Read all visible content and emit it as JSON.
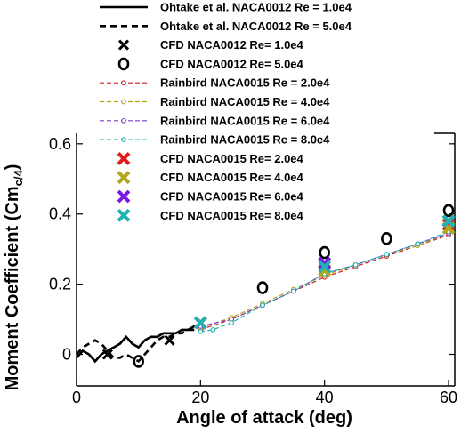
{
  "chart_data": {
    "type": "line",
    "title": "",
    "xlabel": "Angle of attack (deg)",
    "ylabel_main": "Moment Coefficient (Cm",
    "ylabel_sub": "c/4",
    "ylabel_close": ")",
    "xlim": [
      0,
      61
    ],
    "ylim": [
      -0.09,
      0.63
    ],
    "x_ticks": [
      0,
      20,
      40,
      60
    ],
    "x_tick_labels": [
      "0",
      "20",
      "40",
      "60"
    ],
    "y_ticks": [
      0,
      0.2,
      0.4,
      0.6
    ],
    "y_tick_labels": [
      "0",
      "0.2",
      "0.4",
      "0.6"
    ],
    "legend_position": "top-left",
    "series": [
      {
        "name": "Ohtake et al. NACA0012 Re = 1.0e4",
        "kind": "line",
        "color": "#000000",
        "dash": "solid",
        "x": [
          0,
          1,
          2,
          3,
          4,
          5,
          6,
          7,
          8,
          9,
          10,
          11,
          12,
          13,
          14,
          15,
          16,
          17,
          18,
          19,
          20
        ],
        "y": [
          -0.01,
          0.01,
          0.0,
          -0.02,
          0.0,
          0.01,
          0.02,
          0.03,
          0.05,
          0.03,
          0.02,
          0.04,
          0.05,
          0.05,
          0.06,
          0.06,
          0.06,
          0.07,
          0.07,
          0.08,
          0.08
        ]
      },
      {
        "name": "Ohtake et al. NACA0012 Re = 5.0e4",
        "kind": "line",
        "color": "#000000",
        "dash": "dashed",
        "x": [
          0,
          1,
          2,
          3,
          4,
          5,
          6,
          7,
          8,
          9,
          10,
          11,
          12,
          13,
          14,
          15,
          16,
          17,
          18,
          19,
          20
        ],
        "y": [
          0.0,
          0.02,
          0.03,
          0.04,
          0.03,
          0.01,
          -0.01,
          -0.01,
          0.0,
          -0.01,
          -0.02,
          0.0,
          0.02,
          0.04,
          0.05,
          0.05,
          0.06,
          0.06,
          0.07,
          0.07,
          0.08
        ]
      },
      {
        "name": "CFD NACA0012 Re= 1.0e4",
        "kind": "marker",
        "marker": "x",
        "color": "#000000",
        "x": [
          5,
          15
        ],
        "y": [
          0.0,
          0.04
        ]
      },
      {
        "name": "CFD NACA0012 Re= 5.0e4",
        "kind": "marker",
        "marker": "o",
        "color": "#000000",
        "x": [
          10,
          30,
          40,
          50,
          60
        ],
        "y": [
          -0.02,
          0.19,
          0.29,
          0.33,
          0.41
        ]
      },
      {
        "name": "Rainbird NACA0015 Re = 2.0e4",
        "kind": "line-marker",
        "color": "#cc1f1f",
        "dash": "dashed",
        "x": [
          20,
          25,
          30,
          35,
          40,
          45,
          50,
          55,
          60
        ],
        "y": [
          0.07,
          0.1,
          0.14,
          0.18,
          0.22,
          0.25,
          0.28,
          0.31,
          0.34
        ]
      },
      {
        "name": "Rainbird NACA0015 Re = 4.0e4",
        "kind": "line-marker",
        "color": "#b5a71b",
        "dash": "dashed",
        "x": [
          20,
          25,
          30,
          35,
          40,
          45,
          50,
          55,
          60
        ],
        "y": [
          0.075,
          0.105,
          0.145,
          0.185,
          0.225,
          0.255,
          0.285,
          0.31,
          0.345
        ]
      },
      {
        "name": "Rainbird NACA0015 Re = 6.0e4",
        "kind": "line-marker",
        "color": "#7c3ccc",
        "dash": "dashed",
        "x": [
          20,
          25,
          30,
          35,
          40,
          45,
          50,
          55,
          60
        ],
        "y": [
          0.08,
          0.1,
          0.14,
          0.18,
          0.23,
          0.255,
          0.285,
          0.315,
          0.345
        ]
      },
      {
        "name": "Rainbird NACA0015 Re = 8.0e4",
        "kind": "line-marker",
        "color": "#1fb0b0",
        "dash": "dashed",
        "x": [
          20,
          22,
          25,
          30,
          35,
          40,
          45,
          50,
          55,
          60
        ],
        "y": [
          0.065,
          0.07,
          0.09,
          0.14,
          0.18,
          0.23,
          0.255,
          0.285,
          0.315,
          0.35
        ]
      },
      {
        "name": "CFD NACA0015 Re= 2.0e4",
        "kind": "marker",
        "marker": "x",
        "color": "#e81818",
        "x": [
          20,
          40,
          60
        ],
        "y": [
          0.09,
          0.24,
          0.37
        ]
      },
      {
        "name": "CFD NACA0015 Re= 4.0e4",
        "kind": "marker",
        "marker": "x",
        "color": "#b5a71b",
        "x": [
          20,
          40,
          60
        ],
        "y": [
          0.09,
          0.24,
          0.36
        ]
      },
      {
        "name": "CFD NACA0015 Re= 6.0e4",
        "kind": "marker",
        "marker": "x",
        "color": "#7b18e8",
        "x": [
          20,
          40,
          60
        ],
        "y": [
          0.09,
          0.26,
          0.38
        ]
      },
      {
        "name": "CFD NACA0015 Re= 8.0e4",
        "kind": "marker",
        "marker": "x",
        "color": "#1fb3b3",
        "x": [
          20,
          40,
          60
        ],
        "y": [
          0.09,
          0.25,
          0.38
        ]
      }
    ]
  }
}
